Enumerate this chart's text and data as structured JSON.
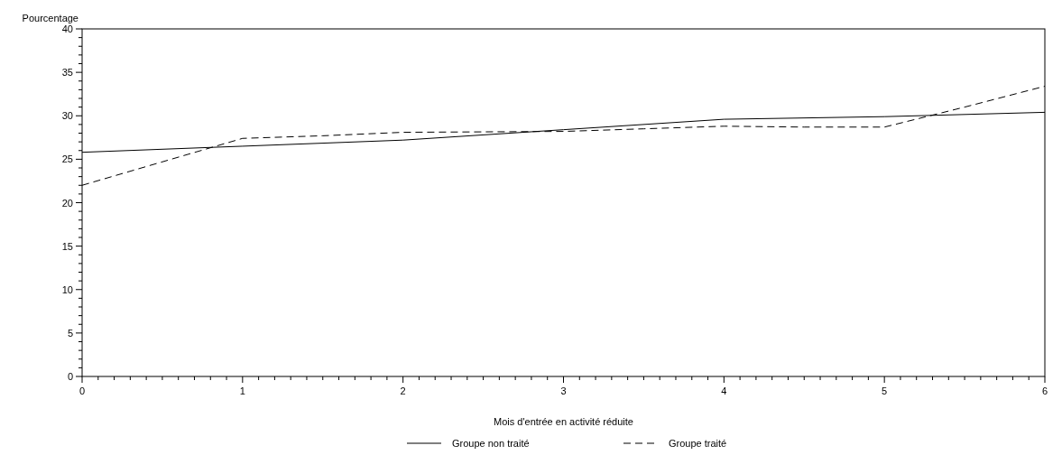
{
  "chart_data": {
    "type": "line",
    "xlabel": "Mois d'entrée en activité réduite",
    "ylabel": "Pourcentage",
    "xlim": [
      0,
      6
    ],
    "ylim": [
      0,
      40
    ],
    "xticks": [
      0,
      1,
      2,
      3,
      4,
      5,
      6,
      {
        "value": 0.1,
        "label": null
      },
      {
        "value": 0.2,
        "label": null
      },
      {
        "value": 0.3,
        "label": null
      },
      {
        "value": 0.4,
        "label": null
      },
      {
        "value": 0.5,
        "label": null
      },
      {
        "value": 0.6,
        "label": null
      },
      {
        "value": 0.7,
        "label": null
      },
      {
        "value": 0.8,
        "label": null
      },
      {
        "value": 0.9,
        "label": null
      },
      {
        "value": 1.1,
        "label": null
      },
      {
        "value": 1.2,
        "label": null
      },
      {
        "value": 1.3,
        "label": null
      },
      {
        "value": 1.4,
        "label": null
      },
      {
        "value": 1.5,
        "label": null
      },
      {
        "value": 1.6,
        "label": null
      },
      {
        "value": 1.7,
        "label": null
      },
      {
        "value": 1.8,
        "label": null
      },
      {
        "value": 1.9,
        "label": null
      },
      {
        "value": 2.1,
        "label": null
      },
      {
        "value": 2.2,
        "label": null
      },
      {
        "value": 2.3,
        "label": null
      },
      {
        "value": 2.4,
        "label": null
      },
      {
        "value": 2.5,
        "label": null
      },
      {
        "value": 2.6,
        "label": null
      },
      {
        "value": 2.7,
        "label": null
      },
      {
        "value": 2.8,
        "label": null
      },
      {
        "value": 2.9,
        "label": null
      },
      {
        "value": 3.1,
        "label": null
      },
      {
        "value": 3.2,
        "label": null
      },
      {
        "value": 3.3,
        "label": null
      },
      {
        "value": 3.4,
        "label": null
      },
      {
        "value": 3.5,
        "label": null
      },
      {
        "value": 3.6,
        "label": null
      },
      {
        "value": 3.7,
        "label": null
      },
      {
        "value": 3.8,
        "label": null
      },
      {
        "value": 3.9,
        "label": null
      },
      {
        "value": 4.1,
        "label": null
      },
      {
        "value": 4.2,
        "label": null
      },
      {
        "value": 4.3,
        "label": null
      },
      {
        "value": 4.4,
        "label": null
      },
      {
        "value": 4.5,
        "label": null
      },
      {
        "value": 4.6,
        "label": null
      },
      {
        "value": 4.7,
        "label": null
      },
      {
        "value": 4.8,
        "label": null
      },
      {
        "value": 4.9,
        "label": null
      },
      {
        "value": 5.1,
        "label": null
      },
      {
        "value": 5.2,
        "label": null
      },
      {
        "value": 5.3,
        "label": null
      },
      {
        "value": 5.4,
        "label": null
      },
      {
        "value": 5.5,
        "label": null
      },
      {
        "value": 5.6,
        "label": null
      },
      {
        "value": 5.7,
        "label": null
      },
      {
        "value": 5.8,
        "label": null
      },
      {
        "value": 5.9,
        "label": null
      }
    ],
    "yticks": [
      0,
      5,
      10,
      15,
      20,
      25,
      30,
      35,
      40,
      {
        "value": 1,
        "label": null
      },
      {
        "value": 2,
        "label": null
      },
      {
        "value": 3,
        "label": null
      },
      {
        "value": 4,
        "label": null
      },
      {
        "value": 6,
        "label": null
      },
      {
        "value": 7,
        "label": null
      },
      {
        "value": 8,
        "label": null
      },
      {
        "value": 9,
        "label": null
      },
      {
        "value": 11,
        "label": null
      },
      {
        "value": 12,
        "label": null
      },
      {
        "value": 13,
        "label": null
      },
      {
        "value": 14,
        "label": null
      },
      {
        "value": 16,
        "label": null
      },
      {
        "value": 17,
        "label": null
      },
      {
        "value": 18,
        "label": null
      },
      {
        "value": 19,
        "label": null
      },
      {
        "value": 21,
        "label": null
      },
      {
        "value": 22,
        "label": null
      },
      {
        "value": 23,
        "label": null
      },
      {
        "value": 24,
        "label": null
      },
      {
        "value": 26,
        "label": null
      },
      {
        "value": 27,
        "label": null
      },
      {
        "value": 28,
        "label": null
      },
      {
        "value": 29,
        "label": null
      },
      {
        "value": 31,
        "label": null
      },
      {
        "value": 32,
        "label": null
      },
      {
        "value": 33,
        "label": null
      },
      {
        "value": 34,
        "label": null
      },
      {
        "value": 36,
        "label": null
      },
      {
        "value": 37,
        "label": null
      },
      {
        "value": 38,
        "label": null
      },
      {
        "value": 39,
        "label": null
      }
    ],
    "legend": "bottom",
    "grid": false,
    "marker": "none",
    "series": [
      {
        "name": "Groupe non traité",
        "color": "#000000",
        "line_style": "solid",
        "x": [
          0,
          1,
          2,
          3,
          4,
          5,
          6
        ],
        "values": [
          25.8,
          26.5,
          27.2,
          28.4,
          29.6,
          29.9,
          30.4
        ]
      },
      {
        "name": "Groupe traité",
        "color": "#000000",
        "line_style": "dashed",
        "x": [
          0,
          1,
          1.5,
          2,
          3,
          3.5,
          4,
          4.5,
          5,
          5.5,
          6
        ],
        "values": [
          22.0,
          27.4,
          27.7,
          28.1,
          28.2,
          28.5,
          28.8,
          28.7,
          28.7,
          31.0,
          33.4
        ]
      }
    ]
  }
}
